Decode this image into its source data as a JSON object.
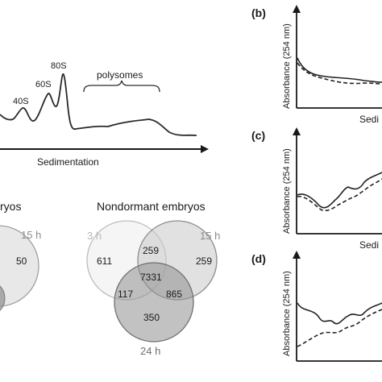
{
  "profile_main": {
    "peaks": [
      "40S",
      "60S",
      "80S"
    ],
    "region_label": "polysomes",
    "xlabel": "Sedimentation"
  },
  "venn_left": {
    "title": "ryos",
    "time_label": "15 h",
    "count": "50"
  },
  "venn_right": {
    "title": "Nondormant embryos",
    "labels": {
      "a": "3 h",
      "b": "15 h",
      "c": "24 h"
    },
    "counts": {
      "a_only": "611",
      "ab": "259",
      "b_only": "259",
      "abc": "7331",
      "ac": "117",
      "bc": "865",
      "c_only": "350"
    }
  },
  "panels": [
    {
      "label": "(b)",
      "ylabel": "Absorbance (254 nm)",
      "xlabel": "Sedi"
    },
    {
      "label": "(c)",
      "ylabel": "Absorbance (254 nm)",
      "xlabel": "Sedi"
    },
    {
      "label": "(d)",
      "ylabel": "Absorbance (254 nm)",
      "xlabel": ""
    }
  ]
}
